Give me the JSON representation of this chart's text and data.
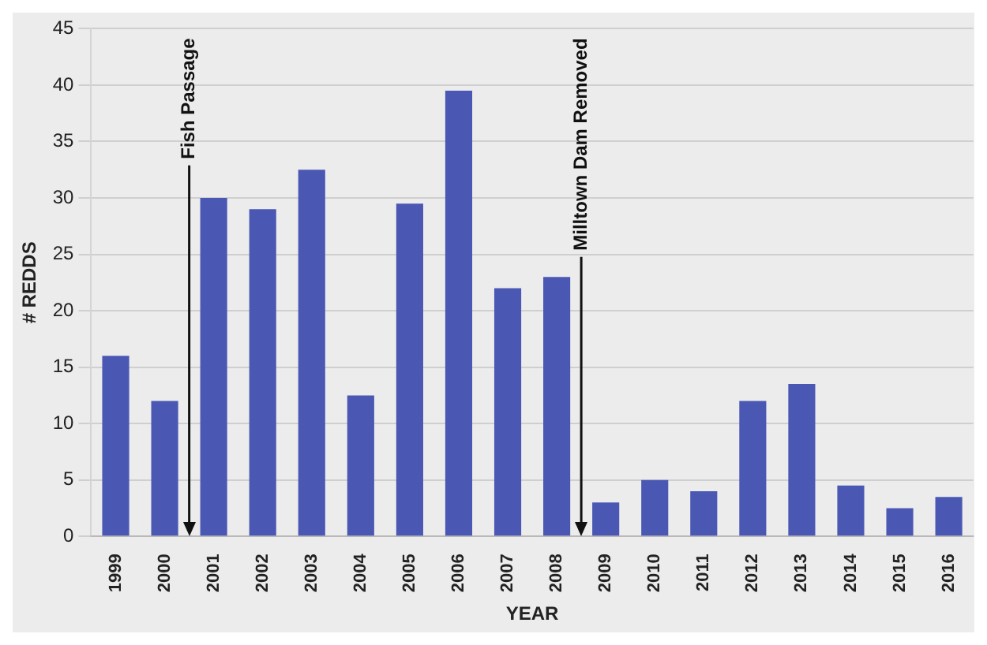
{
  "chart_data": {
    "type": "bar",
    "xlabel": "YEAR",
    "ylabel": "# REDDS",
    "categories": [
      "1999",
      "2000",
      "2001",
      "2002",
      "2003",
      "2004",
      "2005",
      "2006",
      "2007",
      "2008",
      "2009",
      "2010",
      "2011",
      "2012",
      "2013",
      "2014",
      "2015",
      "2016"
    ],
    "values": [
      16,
      12,
      30,
      29,
      32.5,
      12.5,
      29.5,
      39.5,
      22,
      23,
      3,
      5,
      4,
      12,
      13.5,
      4.5,
      2.5,
      3.5
    ],
    "color": "#4a58b4",
    "ylim": [
      0,
      45
    ],
    "yticks": [
      0,
      5,
      10,
      15,
      20,
      25,
      30,
      35,
      40,
      45
    ],
    "grid": "y",
    "ref_lines": [
      {
        "axis": "x",
        "value": "2001",
        "label": "Fish Passage",
        "color": "#111111"
      },
      {
        "axis": "x",
        "value": "2009",
        "label": "Milltown Dam Removed",
        "color": "#111111"
      }
    ]
  }
}
